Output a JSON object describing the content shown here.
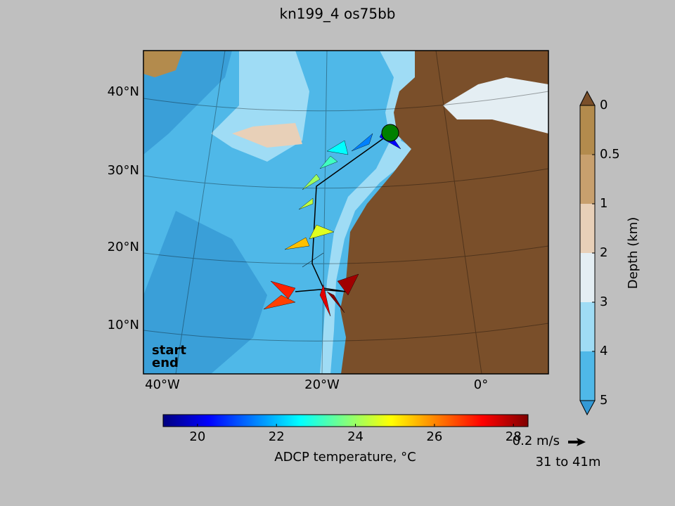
{
  "title": "kn199_4 os75bb",
  "map": {
    "lat_labels": [
      "40°N",
      "30°N",
      "20°N",
      "10°N"
    ],
    "lon_labels": [
      "40°W",
      "20°W",
      "0°"
    ],
    "legend": [
      {
        "label": "start",
        "color": "#008000"
      },
      {
        "label": "end",
        "color": "#ff0000"
      }
    ]
  },
  "temperature_colorbar": {
    "label": "ADCP temperature, °C",
    "lim": [
      19.13,
      28.37
    ],
    "ticks": [
      20,
      22,
      24,
      26,
      28
    ]
  },
  "depth_colorbar": {
    "label": "Depth (km)",
    "ticks": [
      0,
      0.5,
      1,
      2,
      3,
      4,
      5
    ]
  },
  "quiver_key": {
    "label": "0.2 m/s",
    "depth_range": "31 to 41m"
  }
}
